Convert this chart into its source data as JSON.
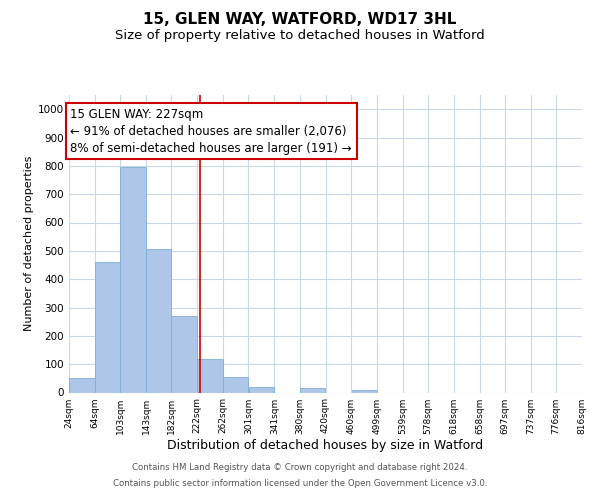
{
  "title_line1": "15, GLEN WAY, WATFORD, WD17 3HL",
  "title_line2": "Size of property relative to detached houses in Watford",
  "xlabel": "Distribution of detached houses by size in Watford",
  "ylabel": "Number of detached properties",
  "bar_edges": [
    24,
    64,
    103,
    143,
    182,
    222,
    262,
    301,
    341,
    380,
    420,
    460,
    499,
    539,
    578,
    618,
    658,
    697,
    737,
    776,
    816
  ],
  "bar_heights": [
    50,
    460,
    795,
    505,
    270,
    120,
    55,
    20,
    0,
    15,
    0,
    10,
    0,
    0,
    0,
    0,
    0,
    0,
    0,
    0
  ],
  "bar_color": "#aec6e8",
  "bar_edgecolor": "#7bafd4",
  "vline_x": 227,
  "vline_color": "#cc0000",
  "annotation_line1": "15 GLEN WAY: 227sqm",
  "annotation_line2": "← 91% of detached houses are smaller (2,076)",
  "annotation_line3": "8% of semi-detached houses are larger (191) →",
  "ylim": [
    0,
    1050
  ],
  "yticks": [
    0,
    100,
    200,
    300,
    400,
    500,
    600,
    700,
    800,
    900,
    1000
  ],
  "tick_labels": [
    "24sqm",
    "64sqm",
    "103sqm",
    "143sqm",
    "182sqm",
    "222sqm",
    "262sqm",
    "301sqm",
    "341sqm",
    "380sqm",
    "420sqm",
    "460sqm",
    "499sqm",
    "539sqm",
    "578sqm",
    "618sqm",
    "658sqm",
    "697sqm",
    "737sqm",
    "776sqm",
    "816sqm"
  ],
  "bg_color": "#ffffff",
  "grid_color": "#c8d8e8",
  "footer_line1": "Contains HM Land Registry data © Crown copyright and database right 2024.",
  "footer_line2": "Contains public sector information licensed under the Open Government Licence v3.0.",
  "title_fontsize": 11,
  "subtitle_fontsize": 9.5,
  "annotation_fontsize": 8.5,
  "annotation_box_edgecolor": "#cc0000",
  "annotation_box_facecolor": "#ffffff"
}
